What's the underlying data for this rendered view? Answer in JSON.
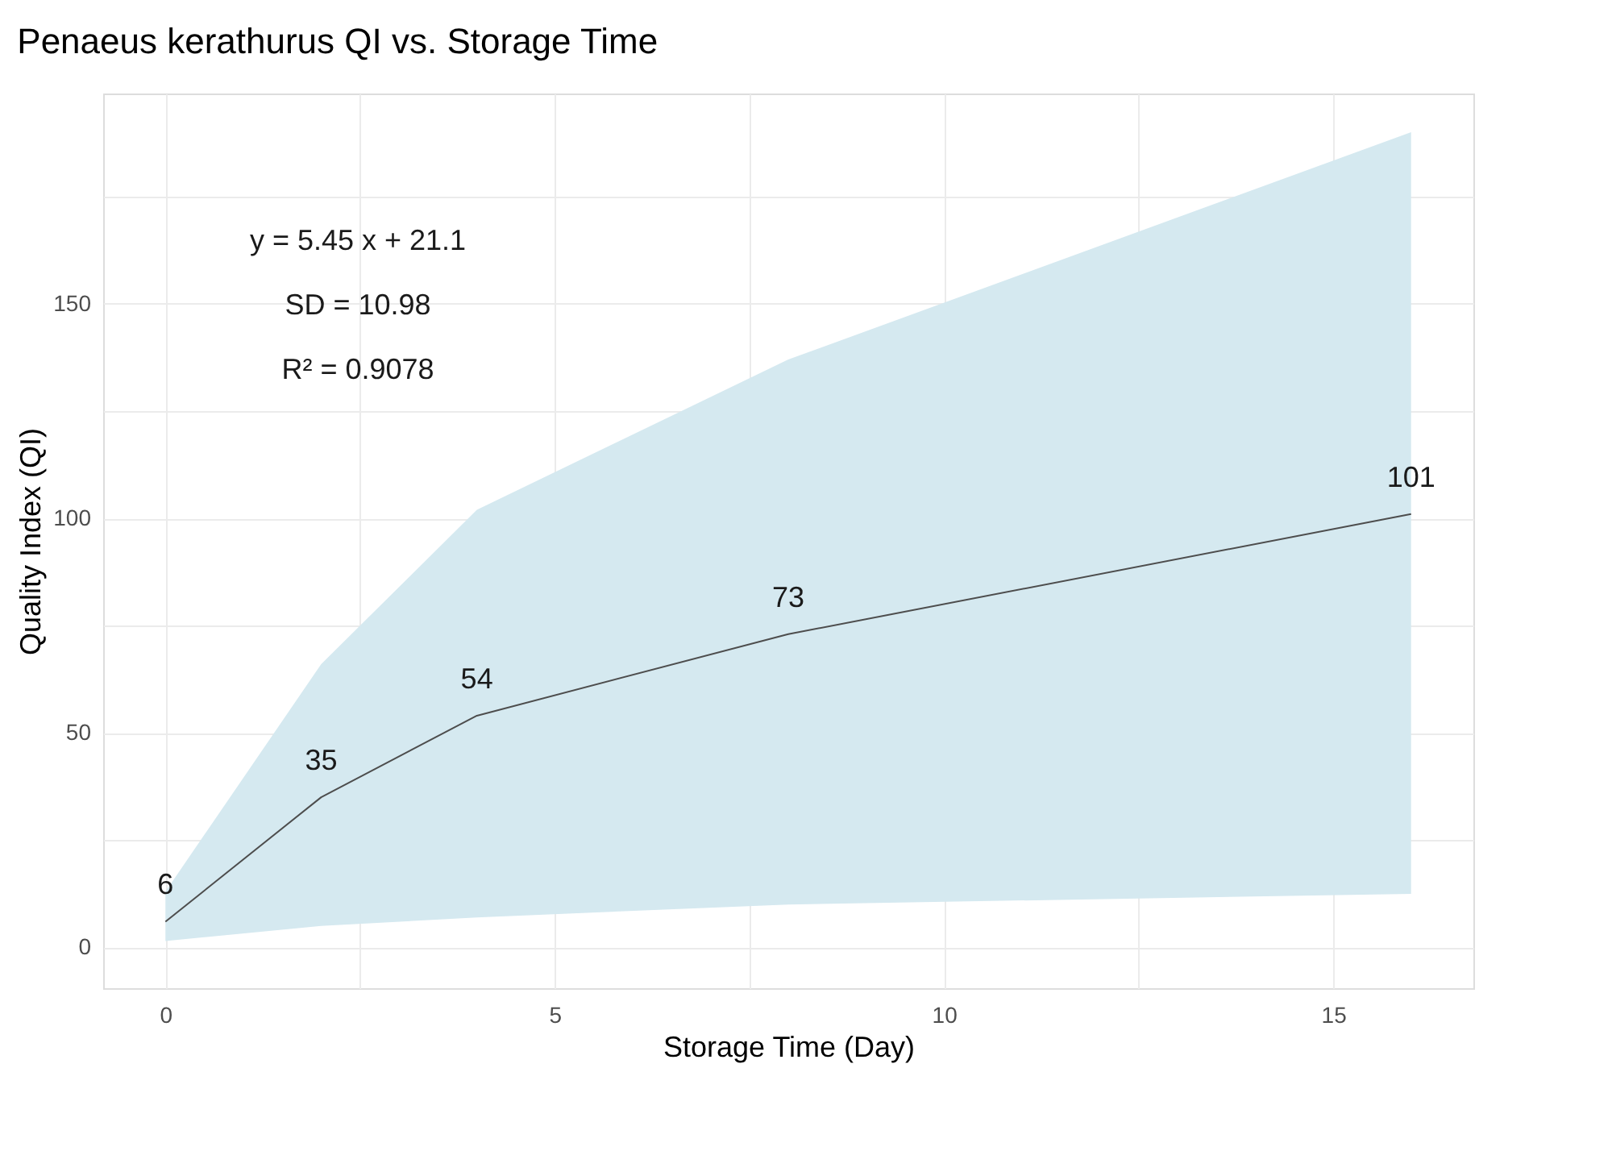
{
  "chart_data": {
    "type": "line",
    "title": "Penaeus kerathurus QI vs. Storage Time",
    "xlabel": "Storage Time (Day)",
    "ylabel": "Quality Index (QI)",
    "x": [
      0,
      2,
      4,
      8,
      16
    ],
    "series": [
      {
        "color": "#4d4d4d",
        "values": [
          6,
          35,
          54,
          73,
          101
        ],
        "lower": [
          1.5,
          5,
          7,
          10,
          12.5
        ],
        "upper": [
          13,
          66,
          102,
          137,
          190
        ]
      }
    ],
    "data_labels": true,
    "annotations": [
      "y = 5.45 x + 21.1",
      "SD = 10.98",
      "R² = 0.9078"
    ],
    "xlim": [
      -0.8,
      16.8
    ],
    "ylim": [
      -9.5,
      199
    ],
    "xticks": [
      0,
      {
        "value": 2.5,
        "label": null
      },
      5,
      {
        "value": 7.5,
        "label": null
      },
      10,
      {
        "value": 12.5,
        "label": null
      },
      15
    ],
    "yticks": [
      0,
      {
        "value": 25,
        "label": null
      },
      50,
      {
        "value": 75,
        "label": null
      },
      100,
      {
        "value": 125,
        "label": null
      },
      150,
      {
        "value": 175,
        "label": null
      }
    ],
    "grid": true,
    "marker": "none",
    "line_style": "solid"
  }
}
